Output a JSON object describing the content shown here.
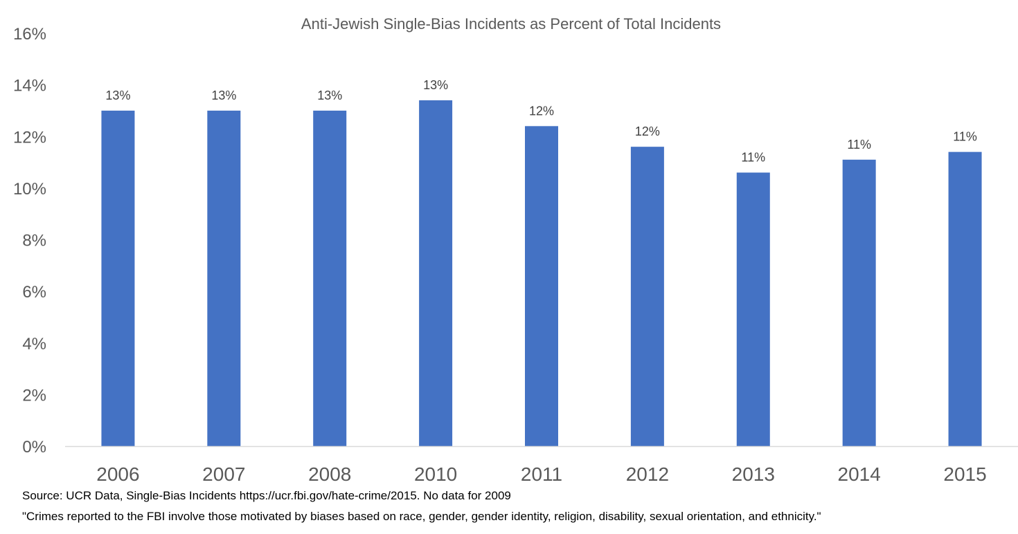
{
  "chart_data": {
    "type": "bar",
    "title": "Anti-Jewish Single-Bias Incidents as Percent of Total Incidents",
    "xlabel": "",
    "ylabel": "",
    "categories": [
      "2006",
      "2007",
      "2008",
      "2010",
      "2011",
      "2012",
      "2013",
      "2014",
      "2015"
    ],
    "values": [
      13.0,
      13.0,
      13.0,
      13.4,
      12.4,
      11.6,
      10.6,
      11.1,
      11.4
    ],
    "data_labels": [
      "13%",
      "13%",
      "13%",
      "13%",
      "12%",
      "12%",
      "11%",
      "11%",
      "11%"
    ],
    "ylim": [
      0,
      16
    ],
    "yticks": [
      0,
      2,
      4,
      6,
      8,
      10,
      12,
      14,
      16
    ],
    "ytick_labels": [
      "0%",
      "2%",
      "4%",
      "6%",
      "8%",
      "10%",
      "12%",
      "14%",
      "16%"
    ],
    "grid": false,
    "legend": "none",
    "colors": {
      "bar": "#4472C4",
      "axis_line": "#D9D9D9",
      "tick_text": "#595959",
      "category_text": "#595959",
      "label_text": "#404040",
      "title_text": "#595959"
    }
  },
  "notes": {
    "source": "Source: UCR Data, Single-Bias Incidents https://ucr.fbi.gov/hate-crime/2015. No data for 2009",
    "quote": "\"Crimes reported to the FBI involve those motivated by biases based on race, gender, gender identity, religion, disability, sexual orientation, and ethnicity.\""
  }
}
